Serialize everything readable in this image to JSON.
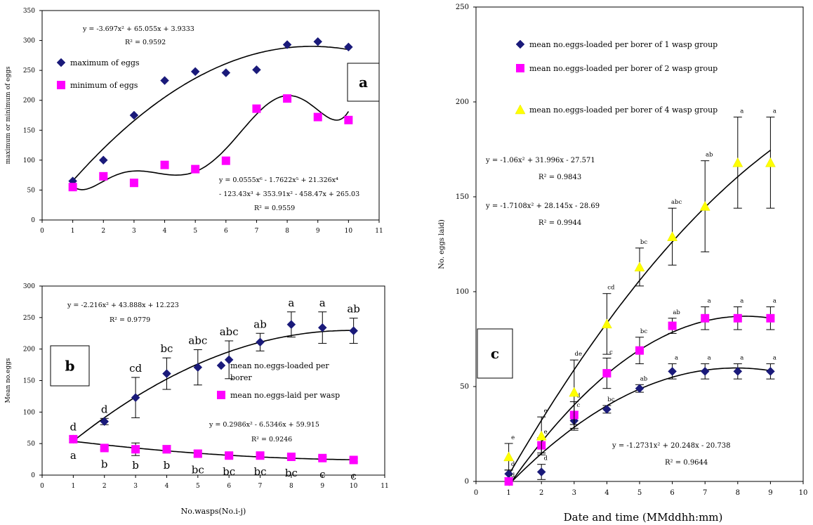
{
  "chart_data": [
    {
      "id": "a",
      "type": "scatter",
      "panel_label": "a",
      "ylabel": "maximum or minimum of eggs",
      "xlabel": "",
      "xlim": [
        0,
        11
      ],
      "ylim": [
        0,
        350
      ],
      "xticks": [
        "0",
        "1",
        "2",
        "3",
        "4",
        "5",
        "6",
        "7",
        "8",
        "9",
        "10",
        "11"
      ],
      "yticks": [
        "0",
        "50",
        "100",
        "150",
        "200",
        "250",
        "300",
        "350"
      ],
      "series": [
        {
          "name": "maximum of eggs",
          "marker": "diamond",
          "color": "#1a1a7a",
          "x": [
            1,
            2,
            3,
            4,
            5,
            6,
            7,
            8,
            9,
            10
          ],
          "values": [
            65,
            100,
            175,
            233,
            248,
            246,
            251,
            293,
            298,
            289
          ]
        },
        {
          "name": "minimum of eggs",
          "marker": "square",
          "color": "#ff00ff",
          "x": [
            1,
            2,
            3,
            4,
            5,
            6,
            7,
            8,
            9,
            10
          ],
          "values": [
            55,
            73,
            62,
            92,
            85,
            99,
            186,
            203,
            172,
            167
          ]
        }
      ],
      "annotations": [
        {
          "lines": [
            "y = -3.697x² + 65.055x + 3.9333",
            "R² = 0.9592"
          ]
        },
        {
          "lines": [
            "y = 0.0555x⁶ - 1.7622x⁵ + 21.326x⁴",
            "- 123.43x³ + 353.91x² - 458.47x + 265.03",
            "R² = 0.9559"
          ]
        }
      ]
    },
    {
      "id": "b",
      "type": "scatter",
      "panel_label": "b",
      "ylabel": "Mean no.eggs",
      "xlabel": "No.wasps(No.i-j)",
      "xlim": [
        0,
        11
      ],
      "ylim": [
        0,
        300
      ],
      "xticks": [
        "0",
        "1",
        "2",
        "3",
        "4",
        "5",
        "6",
        "7",
        "8",
        "9",
        "10",
        "11"
      ],
      "yticks": [
        "0",
        "50",
        "100",
        "150",
        "200",
        "250",
        "300"
      ],
      "series": [
        {
          "name": "mean no.eggs-loaded per borer",
          "marker": "diamond",
          "color": "#1a1a7a",
          "x": [
            1,
            2,
            3,
            4,
            5,
            6,
            7,
            8,
            9,
            10
          ],
          "values": [
            57,
            85,
            123,
            161,
            171,
            183,
            211,
            239,
            234,
            229
          ],
          "errors": [
            5,
            5,
            32,
            25,
            28,
            30,
            14,
            20,
            25,
            20
          ],
          "letters": [
            "d",
            "d",
            "cd",
            "bc",
            "abc",
            "abc",
            "ab",
            "a",
            "a",
            "ab"
          ]
        },
        {
          "name": "mean no.eggs-laid per wasp",
          "marker": "square",
          "color": "#ff00ff",
          "x": [
            1,
            2,
            3,
            4,
            5,
            6,
            7,
            8,
            9,
            10
          ],
          "values": [
            57,
            43,
            41,
            41,
            34,
            31,
            31,
            29,
            27,
            24
          ],
          "errors": [
            0,
            3,
            10,
            6,
            5,
            4,
            4,
            3,
            3,
            3
          ],
          "letters": [
            "a",
            "b",
            "b",
            "b",
            "bc",
            "bc",
            "bc",
            "bc",
            "c",
            "c"
          ]
        }
      ],
      "annotations": [
        {
          "lines": [
            "y = -2.216x² + 43.888x + 12.223",
            "R² = 0.9779"
          ]
        },
        {
          "lines": [
            "y = 0.2986x² - 6.5346x + 59.915",
            "R² = 0.9246"
          ]
        }
      ]
    },
    {
      "id": "c",
      "type": "scatter",
      "panel_label": "c",
      "ylabel": "No. eggs laid)",
      "xlabel": "Date and time (MMddhh:mm)",
      "xlim": [
        0,
        10
      ],
      "ylim": [
        0,
        250
      ],
      "xticks": [
        "0",
        "1",
        "2",
        "3",
        "4",
        "5",
        "6",
        "7",
        "8",
        "9",
        "10"
      ],
      "yticks": [
        "0",
        "50",
        "100",
        "150",
        "200",
        "250"
      ],
      "series": [
        {
          "name": "mean no.eggs-loaded per borer of 1 wasp group",
          "marker": "diamond",
          "color": "#1a1a7a",
          "x": [
            1,
            2,
            3,
            4,
            5,
            6,
            7,
            8,
            9
          ],
          "values": [
            4,
            5,
            32,
            38,
            49,
            58,
            58,
            58,
            58
          ],
          "errors": [
            2,
            4,
            5,
            2,
            2,
            4,
            4,
            4,
            4
          ],
          "letters": [
            "d",
            "d",
            "c",
            "bc",
            "ab",
            "a",
            "a",
            "a",
            "a"
          ]
        },
        {
          "name": "mean no.eggs-loaded per borer of 2 wasp group",
          "marker": "square",
          "color": "#ff00ff",
          "x": [
            1,
            2,
            3,
            4,
            5,
            6,
            7,
            8,
            9
          ],
          "values": [
            0,
            19,
            35,
            57,
            69,
            82,
            86,
            86,
            86
          ],
          "errors": [
            0,
            4,
            7,
            8,
            7,
            4,
            6,
            6,
            6
          ],
          "letters": [
            "d",
            "e",
            "d",
            "c",
            "bc",
            "ab",
            "a",
            "a",
            "a"
          ]
        },
        {
          "name": "mean no.eggs-loaded per borer of 4 wasp group",
          "marker": "triangle",
          "color": "#ffff00",
          "x": [
            1,
            2,
            3,
            4,
            5,
            6,
            7,
            8,
            9
          ],
          "values": [
            13,
            24,
            47,
            83,
            113,
            129,
            145,
            168,
            168
          ],
          "errors": [
            7,
            10,
            17,
            16,
            10,
            15,
            24,
            24,
            24
          ],
          "letters": [
            "e",
            "e",
            "de",
            "cd",
            "bc",
            "abc",
            "ab",
            "a",
            "a"
          ]
        }
      ],
      "annotations": [
        {
          "lines": [
            "y = -1.06x² + 31.996x - 27.571",
            "R² = 0.9843"
          ]
        },
        {
          "lines": [
            "y = -1.7108x² + 28.145x - 28.69",
            "R² = 0.9944"
          ]
        },
        {
          "lines": [
            "y = -1.2731x² + 20.248x - 20.738",
            "R² = 0.9644"
          ]
        }
      ]
    }
  ]
}
